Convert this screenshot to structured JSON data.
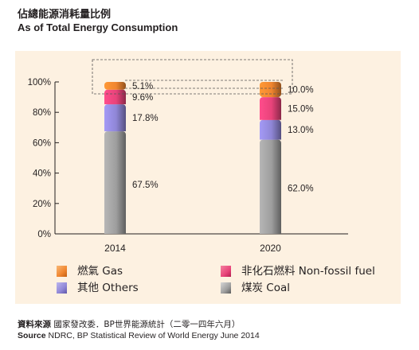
{
  "titles": {
    "zh": "佔總能源消耗量比例",
    "en": "As of Total Energy Consumption"
  },
  "chart_data": {
    "type": "bar",
    "stacked": true,
    "categories": [
      "2014",
      "2020"
    ],
    "y_ticks": [
      "0%",
      "20%",
      "40%",
      "60%",
      "80%",
      "100%"
    ],
    "ylim": [
      0,
      100
    ],
    "grid": false,
    "series": [
      {
        "name": "煤炭 Coal",
        "key": "coal",
        "color": "#9e9e9e",
        "values": [
          67.5,
          62.0
        ],
        "labels": [
          "67.5%",
          "62.0%"
        ]
      },
      {
        "name": "其他 Others",
        "key": "others",
        "color": "#8f86d6",
        "values": [
          17.8,
          13.0
        ],
        "labels": [
          "17.8%",
          "13.0%"
        ]
      },
      {
        "name": "非化石燃料 Non-fossil fuel",
        "key": "nonfossil",
        "color": "#e8437a",
        "values": [
          9.6,
          15.0
        ],
        "labels": [
          "9.6%",
          "15.0%"
        ]
      },
      {
        "name": "燃氣 Gas",
        "key": "gas",
        "color": "#f0852f",
        "values": [
          5.1,
          10.0
        ],
        "labels": [
          "5.1%",
          "10.0%"
        ]
      }
    ]
  },
  "legend": {
    "items": [
      {
        "label": "燃氣 Gas",
        "color": "#f0852f",
        "icon": "gas-swatch-icon"
      },
      {
        "label": "非化石燃料 Non-fossil fuel",
        "color": "#e8437a",
        "icon": "non-fossil-swatch-icon"
      },
      {
        "label": "其他 Others",
        "color": "#8f86d6",
        "icon": "others-swatch-icon"
      },
      {
        "label": "煤炭 Coal",
        "color": "#9e9e9e",
        "icon": "coal-swatch-icon"
      }
    ]
  },
  "source": {
    "zh_label": "資料來源",
    "zh_text": "國家發改委．BP世界能源統計（二零一四年六月）",
    "en_label": "Source",
    "en_text": "NDRC, BP Statistical Review of World Energy June 2014"
  },
  "colors": {
    "panel_background": "#fdf1e1",
    "text": "#231f20"
  }
}
